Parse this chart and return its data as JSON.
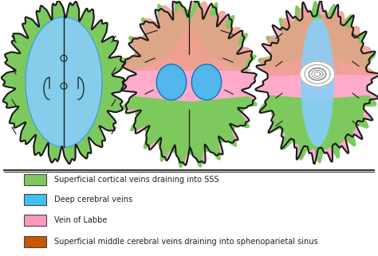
{
  "background_color": "#ffffff",
  "image_area_bg": "#ffffff",
  "fig_bg": "#f0f0f0",
  "legend_items": [
    {
      "color": "#7dc95e",
      "label": "Superficial cortical veins draining into SSS"
    },
    {
      "color": "#40c0f0",
      "label": "Deep cerebral veins"
    },
    {
      "color": "#ff99bb",
      "label": "Vein of Labbe"
    },
    {
      "color": "#cc5500",
      "label": "Superficial middle cerebral veins draining into sphenoparietal sinus"
    }
  ],
  "separator_color": "#555555",
  "text_color": "#222222",
  "legend_fontsize": 7.0
}
